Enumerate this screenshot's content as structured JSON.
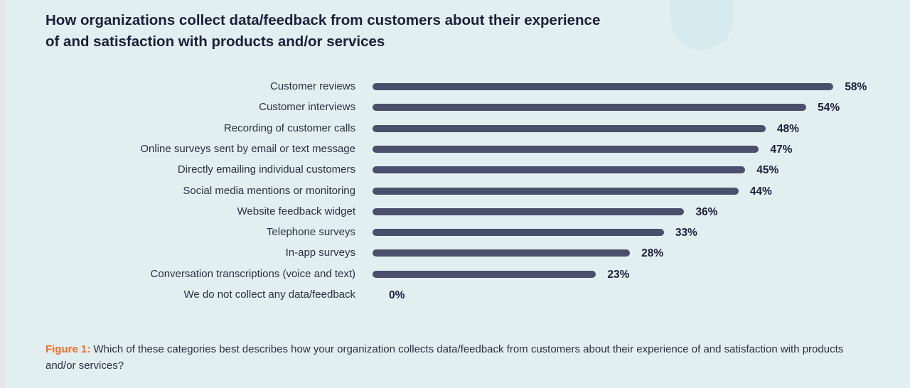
{
  "title": "How organizations collect data/feedback from customers about their experience of and satisfaction with products and/or services",
  "caption": {
    "figure_label": "Figure 1:",
    "text": " Which of these categories best describes how your organization collects data/feedback from customers about their experience of and satisfaction with products and/or services?"
  },
  "colors": {
    "background": "#e1eff0",
    "bar": "#4a4f6c",
    "figure_label": "#f26b2a"
  },
  "chart_data": {
    "type": "bar",
    "orientation": "horizontal",
    "title": "How organizations collect data/feedback from customers about their experience of and satisfaction with products and/or services",
    "xlabel": "",
    "ylabel": "",
    "grid": false,
    "categories": [
      "Customer reviews",
      "Customer interviews",
      "Recording of customer calls",
      "Online surveys sent by email or text message",
      "Directly emailing individual customers",
      "Social media mentions or monitoring",
      "Website feedback widget",
      "Telephone surveys",
      "In-app surveys",
      "Conversation transcriptions (voice and text)",
      "We do not collect any data/feedback"
    ],
    "values": [
      58,
      54,
      48,
      47,
      45,
      44,
      36,
      33,
      28,
      23,
      0
    ],
    "value_labels": [
      "58%",
      "54%",
      "48%",
      "47%",
      "45%",
      "44%",
      "36%",
      "33%",
      "28%",
      "23%",
      "0%"
    ]
  }
}
